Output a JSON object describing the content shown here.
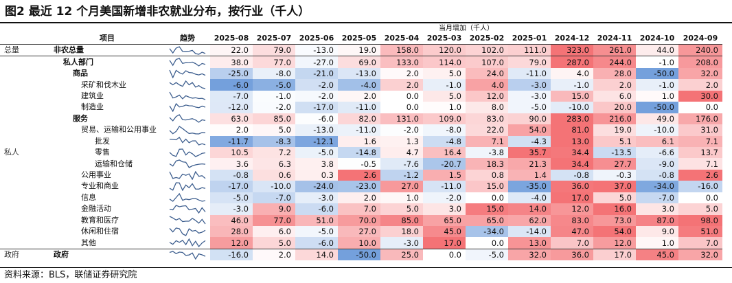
{
  "title": "图2  最近 12 个月美国新增非农就业分布，按行业（千人）",
  "header": {
    "subtitle": "当月增加（千人）",
    "item_label": "项目",
    "trend_label": "趋势",
    "months": [
      "2025-08",
      "2025-07",
      "2025-06",
      "2025-05",
      "2025-04",
      "2025-03",
      "2025-02",
      "2025-01",
      "2024-12",
      "2024-11",
      "2024-10",
      "2024-09"
    ]
  },
  "rows": [
    {
      "cat": "总量",
      "item": "非农总量",
      "level": "l0",
      "values": [
        "22.0",
        "79.0",
        "-13.0",
        "19.0",
        "158.0",
        "120.0",
        "102.0",
        "111.0",
        "323.0",
        "261.0",
        "44.0",
        "240.0"
      ]
    },
    {
      "cat": "",
      "item": "私人部门",
      "level": "l1",
      "values": [
        "38.0",
        "77.0",
        "-27.0",
        "69.0",
        "133.0",
        "114.0",
        "107.0",
        "79.0",
        "287.0",
        "244.0",
        "-1.0",
        "208.0"
      ]
    },
    {
      "cat": "",
      "item": "商品",
      "level": "l1n",
      "bold": true,
      "values": [
        "-25.0",
        "-8.0",
        "-21.0",
        "-13.0",
        "2.0",
        "5.0",
        "24.0",
        "-11.0",
        "4.0",
        "28.0",
        "-50.0",
        "32.0"
      ]
    },
    {
      "cat": "",
      "item": "采矿和伐木业",
      "level": "l3",
      "values": [
        "-6.0",
        "-5.0",
        "-2.0",
        "-4.0",
        "2.0",
        "-1.0",
        "4.0",
        "-3.0",
        "-1.0",
        "2.0",
        "-1.0",
        "2.0"
      ]
    },
    {
      "cat": "",
      "item": "建筑业",
      "level": "l3",
      "values": [
        "-7.0",
        "-1.0",
        "-2.0",
        "2.0",
        "0.0",
        "5.0",
        "12.0",
        "-3.0",
        "15.0",
        "6.0",
        "1.0",
        "30.0"
      ]
    },
    {
      "cat": "",
      "item": "制造业",
      "level": "l3",
      "values": [
        "-12.0",
        "-2.0",
        "-17.0",
        "-11.0",
        "0.0",
        "1.0",
        "8.0",
        "-5.0",
        "-10.0",
        "20.0",
        "-50.0",
        "0.0"
      ]
    },
    {
      "cat": "",
      "item": "服务",
      "level": "l1n",
      "bold": true,
      "values": [
        "63.0",
        "85.0",
        "-6.0",
        "82.0",
        "131.0",
        "109.0",
        "83.0",
        "90.0",
        "283.0",
        "216.0",
        "49.0",
        "176.0"
      ]
    },
    {
      "cat": "",
      "item": "贸易、运输和公用事业",
      "level": "l3",
      "values": [
        "2.0",
        "5.0",
        "-13.0",
        "-11.0",
        "-2.0",
        "-8.0",
        "22.0",
        "54.0",
        "81.0",
        "19.0",
        "-10.0",
        "31.0"
      ]
    },
    {
      "cat": "",
      "item": "批发",
      "level": "l4",
      "values": [
        "-11.7",
        "-8.3",
        "-12.1",
        "1.6",
        "1.3",
        "-4.8",
        "7.1",
        "-4.3",
        "13.0",
        "5.1",
        "6.1",
        "7.1"
      ]
    },
    {
      "cat": "私人",
      "item": "零售",
      "level": "l4",
      "values": [
        "10.5",
        "7.2",
        "-5.0",
        "-14.8",
        "4.7",
        "16.4",
        "-3.8",
        "35.7",
        "34.4",
        "-13.5",
        "-6.6",
        "13.7"
      ]
    },
    {
      "cat": "",
      "item": "运输和仓储",
      "level": "l4",
      "values": [
        "3.6",
        "6.3",
        "3.8",
        "-0.5",
        "-7.6",
        "-20.7",
        "18.3",
        "21.3",
        "34.4",
        "27.7",
        "-9.0",
        "7.1"
      ]
    },
    {
      "cat": "",
      "item": "公用事业",
      "level": "l3b",
      "values": [
        "-0.8",
        "0.6",
        "0.3",
        "2.6",
        "-1.2",
        "1.5",
        "0.8",
        "1.4",
        "-0.8",
        "-0.3",
        "-0.8",
        "2.6"
      ]
    },
    {
      "cat": "",
      "item": "专业和商业",
      "level": "l3b",
      "values": [
        "-17.0",
        "-10.0",
        "-24.0",
        "-23.0",
        "27.0",
        "-11.0",
        "15.0",
        "-35.0",
        "36.0",
        "37.0",
        "-34.0",
        "-16.0"
      ]
    },
    {
      "cat": "",
      "item": "信息",
      "level": "l3b",
      "values": [
        "-5.0",
        "-7.0",
        "-3.0",
        "2.0",
        "1.0",
        "-2.0",
        "0.0",
        "-4.0",
        "17.0",
        "5.0",
        "-7.0",
        "0.0"
      ]
    },
    {
      "cat": "",
      "item": "金融活动",
      "level": "l3b",
      "values": [
        "-3.0",
        "9.0",
        "-6.0",
        "7.0",
        "5.0",
        "3.0",
        "15.0",
        "14.0",
        "12.0",
        "16.0",
        "3.0",
        "5.0"
      ]
    },
    {
      "cat": "",
      "item": "教育和医疗",
      "level": "l3b",
      "values": [
        "46.0",
        "77.0",
        "51.0",
        "70.0",
        "85.0",
        "65.0",
        "65.0",
        "62.0",
        "83.0",
        "73.0",
        "87.0",
        "98.0"
      ]
    },
    {
      "cat": "",
      "item": "休闲和住宿",
      "level": "l3b",
      "values": [
        "28.0",
        "6.0",
        "-5.0",
        "27.0",
        "18.0",
        "45.0",
        "-34.0",
        "-14.0",
        "47.0",
        "54.0",
        "9.0",
        "51.0"
      ]
    },
    {
      "cat": "",
      "item": "其他",
      "level": "l3b",
      "values": [
        "12.0",
        "5.0",
        "-6.0",
        "10.0",
        "-3.0",
        "17.0",
        "0.0",
        "13.0",
        "7.0",
        "12.0",
        "1.0",
        "7.0"
      ]
    },
    {
      "cat": "政府",
      "item": "政府",
      "level": "l0",
      "values": [
        "-16.0",
        "2.0",
        "14.0",
        "-50.0",
        "25.0",
        "0.0",
        "-5.0",
        "32.0",
        "36.0",
        "17.0",
        "45.0",
        "32.0"
      ]
    }
  ],
  "heat_colors": {
    "negative": "#5b8fd6",
    "positive": "#f25a5e",
    "neutral": "#ffffff"
  },
  "source": "资料来源：BLS，联储证券研究院"
}
